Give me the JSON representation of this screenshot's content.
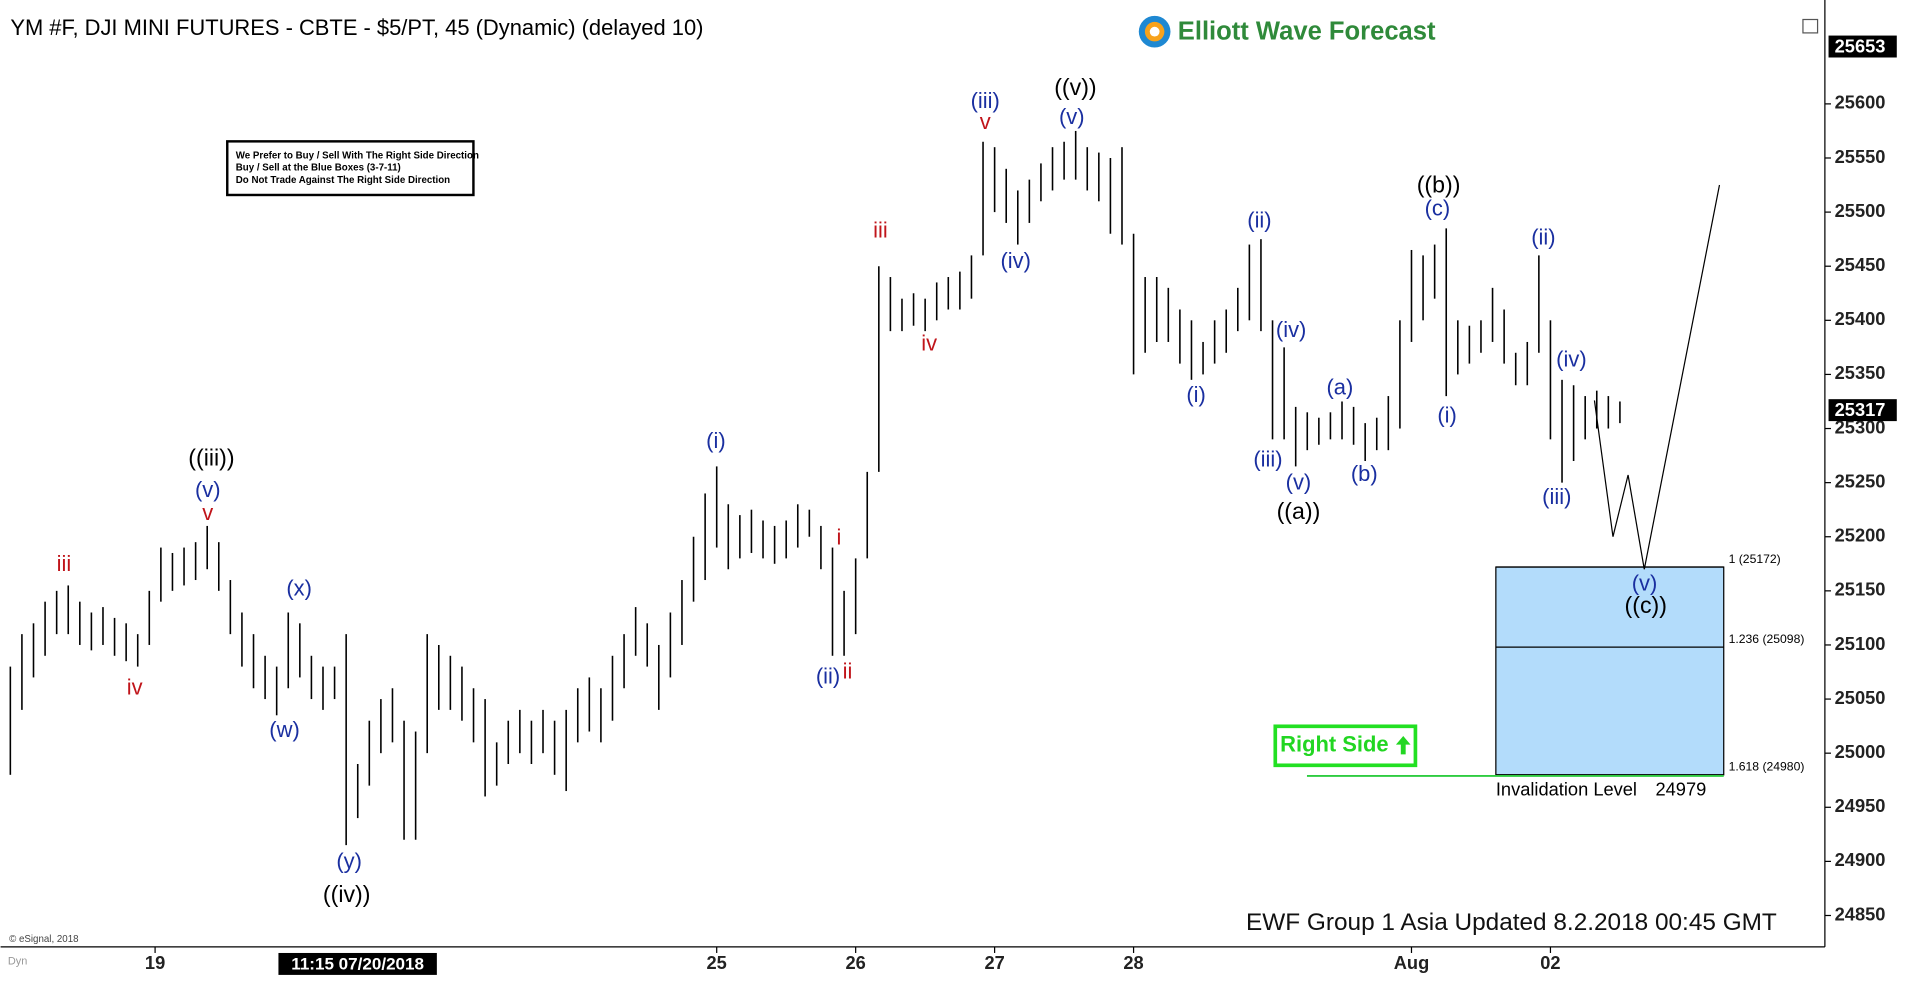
{
  "chart_data": {
    "type": "ohlc",
    "title": "YM #F, DJI MINI FUTURES - CBTE - $5/PT, 45 (Dynamic) (delayed 10)",
    "logo": "Elliott Wave Forecast",
    "note": [
      "We Prefer to Buy / Sell With The Right Side Direction",
      "Buy / Sell at the Blue Boxes (3-7-11)",
      "Do Not Trade Against The Right Side Direction"
    ],
    "badge": "Right Side",
    "footer": "EWF Group 1 Asia Updated 8.2.2018 00:45 GMT",
    "copyright": "© eSignal, 2018",
    "corner": "Dyn",
    "cursor_label": "11:15 07/20/2018",
    "color": "#000000",
    "high": [
      25080,
      25110,
      25120,
      25140,
      25150,
      25155,
      25140,
      25130,
      25135,
      25125,
      25120,
      25110,
      25150,
      25190,
      25185,
      25190,
      25195,
      25210,
      25195,
      25160,
      25130,
      25110,
      25090,
      25080,
      25130,
      25120,
      25090,
      25080,
      25080,
      25110,
      24990,
      25030,
      25050,
      25060,
      25030,
      25020,
      25110,
      25100,
      25090,
      25080,
      25060,
      25050,
      25010,
      25030,
      25040,
      25030,
      25040,
      25030,
      25040,
      25060,
      25070,
      25060,
      25090,
      25110,
      25135,
      25120,
      25100,
      25130,
      25160,
      25200,
      25240,
      25265,
      25230,
      25220,
      25225,
      25215,
      25210,
      25215,
      25230,
      25225,
      25210,
      25190,
      25150,
      25180,
      25260,
      25450,
      25440,
      25420,
      25425,
      25420,
      25435,
      25440,
      25445,
      25460,
      25565,
      25560,
      25540,
      25520,
      25530,
      25545,
      25560,
      25565,
      25575,
      25560,
      25555,
      25550,
      25560,
      25480,
      25440,
      25440,
      25430,
      25410,
      25400,
      25380,
      25400,
      25410,
      25430,
      25470,
      25475,
      25400,
      25375,
      25320,
      25315,
      25310,
      25315,
      25325,
      25320,
      25305,
      25310,
      25330,
      25400,
      25465,
      25460,
      25470,
      25485,
      25400,
      25395,
      25400,
      25430,
      25410,
      25370,
      25380,
      25460,
      25400,
      25345,
      25340,
      25330,
      25335,
      25330,
      25325
    ],
    "low": [
      24980,
      25040,
      25070,
      25090,
      25110,
      25110,
      25100,
      25095,
      25100,
      25090,
      25085,
      25080,
      25100,
      25140,
      25150,
      25155,
      25160,
      25170,
      25150,
      25110,
      25080,
      25060,
      25050,
      25035,
      25060,
      25070,
      25050,
      25040,
      25050,
      24915,
      24940,
      24970,
      25000,
      25010,
      24920,
      24920,
      25000,
      25040,
      25040,
      25030,
      25010,
      24960,
      24970,
      24990,
      25000,
      24990,
      25000,
      24980,
      24965,
      25010,
      25020,
      25010,
      25030,
      25060,
      25090,
      25080,
      25040,
      25070,
      25100,
      25140,
      25160,
      25190,
      25170,
      25180,
      25185,
      25180,
      25175,
      25180,
      25190,
      25200,
      25170,
      25090,
      25090,
      25110,
      25180,
      25260,
      25390,
      25390,
      25395,
      25390,
      25400,
      25410,
      25410,
      25420,
      25460,
      25500,
      25490,
      25470,
      25490,
      25510,
      25520,
      25530,
      25530,
      25520,
      25510,
      25480,
      25470,
      25350,
      25370,
      25380,
      25380,
      25360,
      25345,
      25350,
      25360,
      25370,
      25390,
      25400,
      25390,
      25290,
      25290,
      25265,
      25280,
      25285,
      25290,
      25290,
      25285,
      25270,
      25280,
      25280,
      25300,
      25380,
      25400,
      25420,
      25330,
      25350,
      25360,
      25370,
      25380,
      25360,
      25340,
      25340,
      25370,
      25290,
      25250,
      25270,
      25290,
      25300,
      25300,
      25305
    ],
    "projection": {
      "x": [
        136.8,
        138.4,
        139.7,
        141.1,
        147.6
      ],
      "y": [
        25326,
        25200,
        25257,
        25170,
        25525
      ]
    },
    "fib_levels": [
      {
        "value": 25172,
        "label": "1 (25172)"
      },
      {
        "value": 25098,
        "label": "1.236 (25098)"
      },
      {
        "value": 24980,
        "label": "1.618 (24980)"
      }
    ],
    "box_color": "#b3dcfb",
    "invalidation": {
      "label": "Invalidation Level",
      "value": 24979
    },
    "price_markers": [
      25653,
      25317
    ],
    "xlim": [
      -0.842,
      156.7
    ],
    "xticks": [
      {
        "value": 12.5,
        "label": "19"
      },
      {
        "value": 61,
        "label": "25"
      },
      {
        "value": 73,
        "label": "26"
      },
      {
        "value": 85,
        "label": "27"
      },
      {
        "value": 97,
        "label": "28"
      },
      {
        "value": 121,
        "label": "Aug"
      },
      {
        "value": 133,
        "label": "02"
      }
    ],
    "ylim": [
      24821,
      25696
    ],
    "yticks": [
      24850,
      24900,
      24950,
      25000,
      25050,
      25100,
      25150,
      25200,
      25250,
      25300,
      25350,
      25400,
      25450,
      25500,
      25550,
      25600
    ],
    "wave_labels": [
      {
        "text": "((iii))",
        "color": "#000000"
      },
      {
        "text": "(v)",
        "color": "#1a2fa0"
      },
      {
        "text": "v",
        "color": "#c0141a"
      },
      {
        "text": "iii",
        "color": "#c0141a"
      },
      {
        "text": "iv",
        "color": "#c0141a"
      },
      {
        "text": "(x)",
        "color": "#1a2fa0"
      },
      {
        "text": "(w)",
        "color": "#1a2fa0"
      },
      {
        "text": "(y)",
        "color": "#1a2fa0"
      },
      {
        "text": "((iv))",
        "color": "#000000"
      },
      {
        "text": "(i)",
        "color": "#1a2fa0"
      },
      {
        "text": "i",
        "color": "#c0141a"
      },
      {
        "text": "(ii)",
        "color": "#1a2fa0"
      },
      {
        "text": "ii",
        "color": "#c0141a"
      },
      {
        "text": "iii",
        "color": "#c0141a"
      },
      {
        "text": "iv",
        "color": "#c0141a"
      },
      {
        "text": "(iii)",
        "color": "#1a2fa0"
      },
      {
        "text": "v",
        "color": "#c0141a"
      },
      {
        "text": "(iv)",
        "color": "#1a2fa0"
      },
      {
        "text": "((v))",
        "color": "#000000"
      },
      {
        "text": "(v)",
        "color": "#1a2fa0"
      },
      {
        "text": "(i)",
        "color": "#1a2fa0"
      },
      {
        "text": "(ii)",
        "color": "#1a2fa0"
      },
      {
        "text": "(iv)",
        "color": "#1a2fa0"
      },
      {
        "text": "(iii)",
        "color": "#1a2fa0"
      },
      {
        "text": "(v)",
        "color": "#1a2fa0"
      },
      {
        "text": "((a))",
        "color": "#000000"
      },
      {
        "text": "(a)",
        "color": "#1a2fa0"
      },
      {
        "text": "(b)",
        "color": "#1a2fa0"
      },
      {
        "text": "((b))",
        "color": "#000000"
      },
      {
        "text": "(c)",
        "color": "#1a2fa0"
      },
      {
        "text": "(i)",
        "color": "#1a2fa0"
      },
      {
        "text": "(ii)",
        "color": "#1a2fa0"
      },
      {
        "text": "(iv)",
        "color": "#1a2fa0"
      },
      {
        "text": "(iii)",
        "color": "#1a2fa0"
      },
      {
        "text": "(v)",
        "color": "#1a2fa0"
      },
      {
        "text": "((c))",
        "color": "#000000"
      }
    ]
  }
}
